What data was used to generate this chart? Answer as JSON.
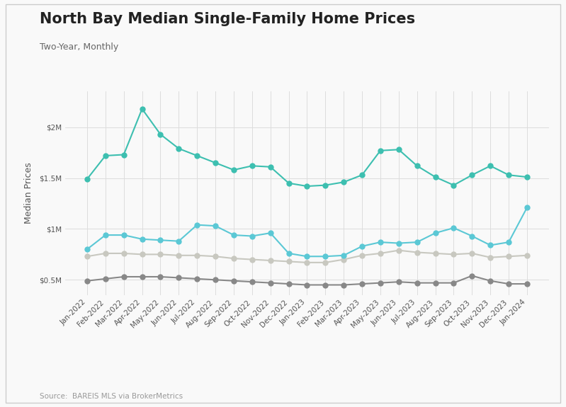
{
  "title": "North Bay Median Single-Family Home Prices",
  "subtitle": "Two-Year, Monthly",
  "source": "Source:  BAREIS MLS via BrokerMetrics",
  "ylabel": "Median Prices",
  "background_color": "#f9f9f9",
  "plot_bg_color": "#f9f9f9",
  "grid_color": "#dddddd",
  "labels": [
    "Jan-2022",
    "Feb-2022",
    "Mar-2022",
    "Apr-2022",
    "May-2022",
    "Jun-2022",
    "Jul-2022",
    "Aug-2022",
    "Sep-2022",
    "Oct-2022",
    "Nov-2022",
    "Dec-2022",
    "Jan-2023",
    "Feb-2023",
    "Mar-2023",
    "Apr-2023",
    "May-2023",
    "Jun-2023",
    "Jul-2023",
    "Aug-2023",
    "Sep-2023",
    "Oct-2023",
    "Nov-2023",
    "Dec-2023",
    "Jan-2024"
  ],
  "series": {
    "Marin": {
      "values": [
        1490000,
        1720000,
        1730000,
        2180000,
        1930000,
        1790000,
        1720000,
        1650000,
        1580000,
        1620000,
        1610000,
        1450000,
        1420000,
        1430000,
        1460000,
        1530000,
        1770000,
        1780000,
        1620000,
        1510000,
        1430000,
        1530000,
        1620000,
        1530000,
        1510000
      ],
      "color": "#3dbfb0",
      "marker": "o",
      "linewidth": 1.5,
      "markersize": 5,
      "zorder": 4
    },
    "Napa": {
      "values": [
        800000,
        940000,
        940000,
        900000,
        890000,
        880000,
        1040000,
        1030000,
        940000,
        930000,
        960000,
        760000,
        730000,
        730000,
        740000,
        830000,
        870000,
        860000,
        870000,
        960000,
        1010000,
        930000,
        840000,
        870000,
        1210000
      ],
      "color": "#5bc8d5",
      "marker": "o",
      "linewidth": 1.5,
      "markersize": 5,
      "zorder": 3
    },
    "Solano": {
      "values": [
        490000,
        510000,
        530000,
        530000,
        530000,
        520000,
        510000,
        500000,
        490000,
        480000,
        470000,
        460000,
        450000,
        450000,
        450000,
        460000,
        470000,
        480000,
        470000,
        470000,
        470000,
        540000,
        490000,
        460000,
        460000
      ],
      "color": "#888888",
      "marker": "o",
      "linewidth": 1.5,
      "markersize": 5,
      "zorder": 2
    },
    "Sonoma": {
      "values": [
        730000,
        760000,
        760000,
        750000,
        750000,
        740000,
        740000,
        730000,
        710000,
        700000,
        690000,
        680000,
        670000,
        670000,
        700000,
        740000,
        760000,
        790000,
        770000,
        760000,
        750000,
        760000,
        720000,
        730000,
        740000
      ],
      "color": "#c8c8c0",
      "marker": "o",
      "linewidth": 1.5,
      "markersize": 5,
      "zorder": 1
    }
  },
  "ylim": [
    350000,
    2350000
  ],
  "yticks": [
    500000,
    1000000,
    1500000,
    2000000
  ],
  "ytick_labels": [
    "$0.5M",
    "$1M",
    "$1.5M",
    "$2M"
  ],
  "title_fontsize": 15,
  "subtitle_fontsize": 9,
  "axis_label_fontsize": 9,
  "tick_fontsize": 7.5,
  "legend_fontsize": 9,
  "source_fontsize": 7.5
}
